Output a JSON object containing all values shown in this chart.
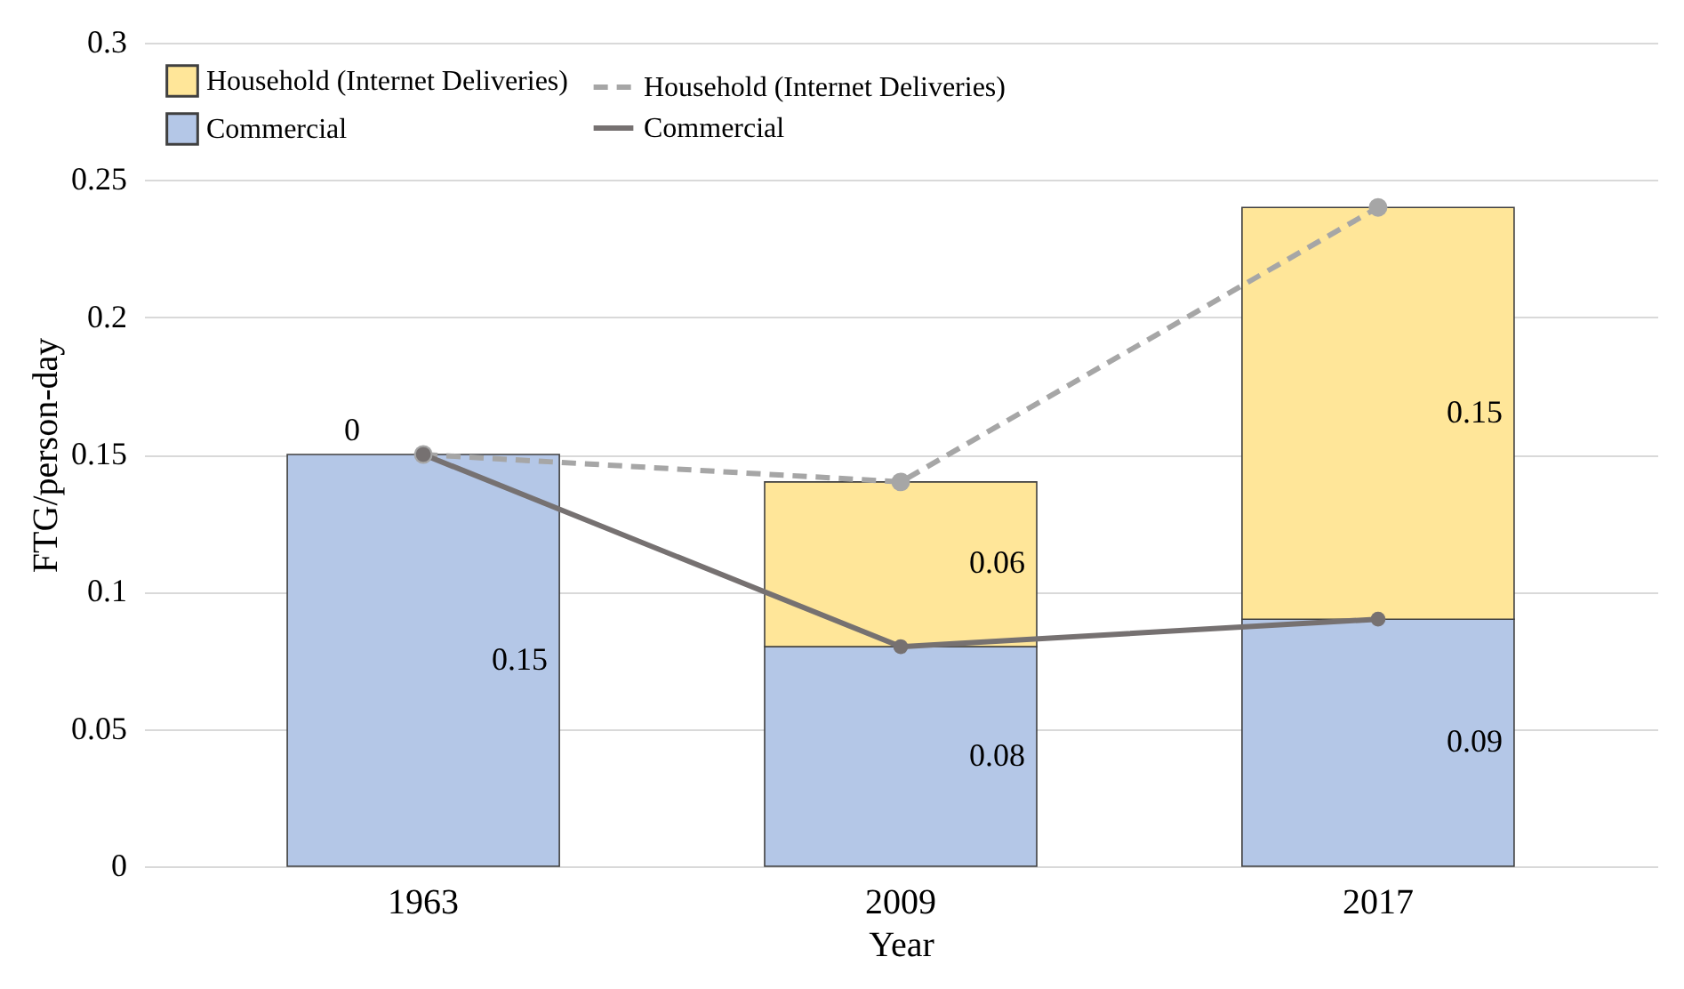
{
  "chart_data": {
    "type": "bar",
    "stacked": true,
    "xlabel": "Year",
    "ylabel": "FTG/person-day",
    "categories": [
      "1963",
      "2009",
      "2017"
    ],
    "series": [
      {
        "name": "Commercial",
        "type": "bar",
        "color": "#b4c7e7",
        "values": [
          0.15,
          0.08,
          0.09
        ],
        "value_labels": [
          "0.15",
          "0.08",
          "0.09"
        ]
      },
      {
        "name": "Household (Internet Deliveries)",
        "type": "bar",
        "color": "#ffe699",
        "values": [
          0,
          0.06,
          0.15
        ],
        "value_labels": [
          null,
          "0.06",
          "0.15"
        ]
      },
      {
        "name": "Household (Internet Deliveries)",
        "type": "line",
        "color": "#a6a6a6",
        "line_style": "dashed",
        "marker": "circle",
        "values": [
          0.15,
          0.14,
          0.24
        ]
      },
      {
        "name": "Commercial",
        "type": "line",
        "color": "#767171",
        "line_style": "solid",
        "marker": "circle",
        "values": [
          0.15,
          0.08,
          0.09
        ]
      }
    ],
    "ylim": [
      0,
      0.3
    ],
    "yticks": [
      0,
      0.05,
      0.1,
      0.15,
      0.2,
      0.25,
      0.3
    ],
    "grid": "y",
    "legend": "top left",
    "annotations": [
      {
        "text": "0",
        "x": "1963",
        "y": 0.15
      }
    ]
  }
}
